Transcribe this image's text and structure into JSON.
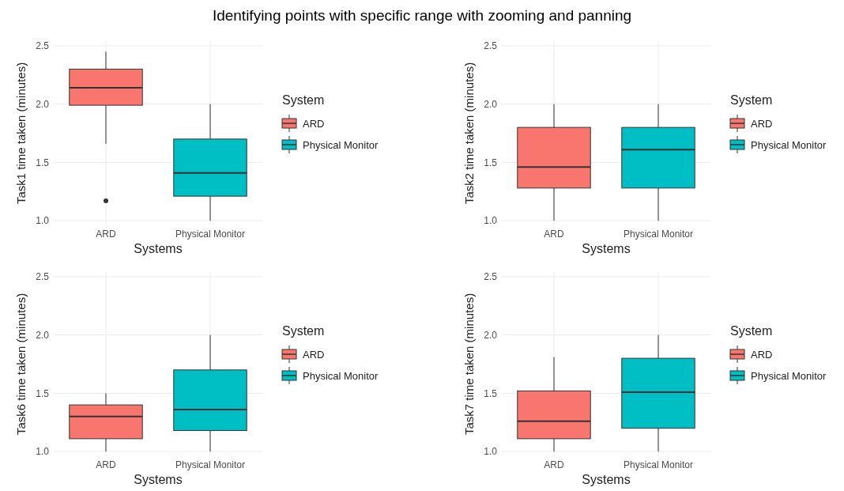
{
  "chart_data": [
    {
      "type": "box",
      "title": "Identifying points with specific range with zooming and panning",
      "categories": [
        "ARD",
        "Physical Monitor"
      ],
      "xlabel": "Systems",
      "ylabel": "Task1 time taken (minutes)",
      "legend_title": "System",
      "legend": "right",
      "grid": true,
      "ylim": [
        0.96,
        2.54
      ],
      "yticks": [
        {
          "value": 1,
          "label": "1.0"
        },
        {
          "value": 1.5,
          "label": "1.5"
        },
        {
          "value": 2,
          "label": "2.0"
        },
        {
          "value": 2.5,
          "label": "2.5"
        }
      ],
      "series": [
        {
          "name": "ARD",
          "color": "#f8766d",
          "boxes": [
            {
              "low": 1.66,
              "q1": 1.99,
              "median": 2.14,
              "q3": 2.3,
              "high": 2.45,
              "outliers": [
                1.17
              ]
            },
            null
          ]
        },
        {
          "name": "Physical Monitor",
          "color": "#00bfc4",
          "boxes": [
            null,
            {
              "low": 1.0,
              "q1": 1.21,
              "median": 1.41,
              "q3": 1.7,
              "high": 2.0
            }
          ]
        }
      ]
    },
    {
      "type": "box",
      "categories": [
        "ARD",
        "Physical Monitor"
      ],
      "xlabel": "Systems",
      "ylabel": "Task2 time taken (minutes)",
      "legend_title": "System",
      "legend": "right",
      "grid": true,
      "ylim": [
        0.96,
        2.54
      ],
      "yticks": [
        {
          "value": 1,
          "label": "1.0"
        },
        {
          "value": 1.5,
          "label": "1.5"
        },
        {
          "value": 2,
          "label": "2.0"
        },
        {
          "value": 2.5,
          "label": "2.5"
        }
      ],
      "series": [
        {
          "name": "ARD",
          "color": "#f8766d",
          "boxes": [
            {
              "low": 1.0,
              "q1": 1.28,
              "median": 1.46,
              "q3": 1.8,
              "high": 2.0
            },
            null
          ]
        },
        {
          "name": "Physical Monitor",
          "color": "#00bfc4",
          "boxes": [
            null,
            {
              "low": 1.0,
              "q1": 1.28,
              "median": 1.61,
              "q3": 1.8,
              "high": 2.0
            }
          ]
        }
      ]
    },
    {
      "type": "box",
      "categories": [
        "ARD",
        "Physical Monitor"
      ],
      "xlabel": "Systems",
      "ylabel": "Task6 time taken (minutes)",
      "legend_title": "System",
      "legend": "right",
      "grid": true,
      "ylim": [
        0.96,
        2.54
      ],
      "yticks": [
        {
          "value": 1,
          "label": "1.0"
        },
        {
          "value": 1.5,
          "label": "1.5"
        },
        {
          "value": 2,
          "label": "2.0"
        },
        {
          "value": 2.5,
          "label": "2.5"
        }
      ],
      "series": [
        {
          "name": "ARD",
          "color": "#f8766d",
          "boxes": [
            {
              "low": 1.0,
              "q1": 1.11,
              "median": 1.3,
              "q3": 1.4,
              "high": 1.5
            },
            null
          ]
        },
        {
          "name": "Physical Monitor",
          "color": "#00bfc4",
          "boxes": [
            null,
            {
              "low": 1.0,
              "q1": 1.18,
              "median": 1.36,
              "q3": 1.7,
              "high": 2.0
            }
          ]
        }
      ]
    },
    {
      "type": "box",
      "categories": [
        "ARD",
        "Physical Monitor"
      ],
      "xlabel": "Systems",
      "ylabel": "Task7 time taken (minutes)",
      "legend_title": "System",
      "legend": "right",
      "grid": true,
      "ylim": [
        0.96,
        2.54
      ],
      "yticks": [
        {
          "value": 1,
          "label": "1.0"
        },
        {
          "value": 1.5,
          "label": "1.5"
        },
        {
          "value": 2,
          "label": "2.0"
        },
        {
          "value": 2.5,
          "label": "2.5"
        }
      ],
      "series": [
        {
          "name": "ARD",
          "color": "#f8766d",
          "boxes": [
            {
              "low": 1.0,
              "q1": 1.11,
              "median": 1.26,
              "q3": 1.52,
              "high": 1.81
            },
            null
          ]
        },
        {
          "name": "Physical Monitor",
          "color": "#00bfc4",
          "boxes": [
            null,
            {
              "low": 1.0,
              "q1": 1.2,
              "median": 1.51,
              "q3": 1.8,
              "high": 2.0
            }
          ]
        }
      ]
    }
  ]
}
